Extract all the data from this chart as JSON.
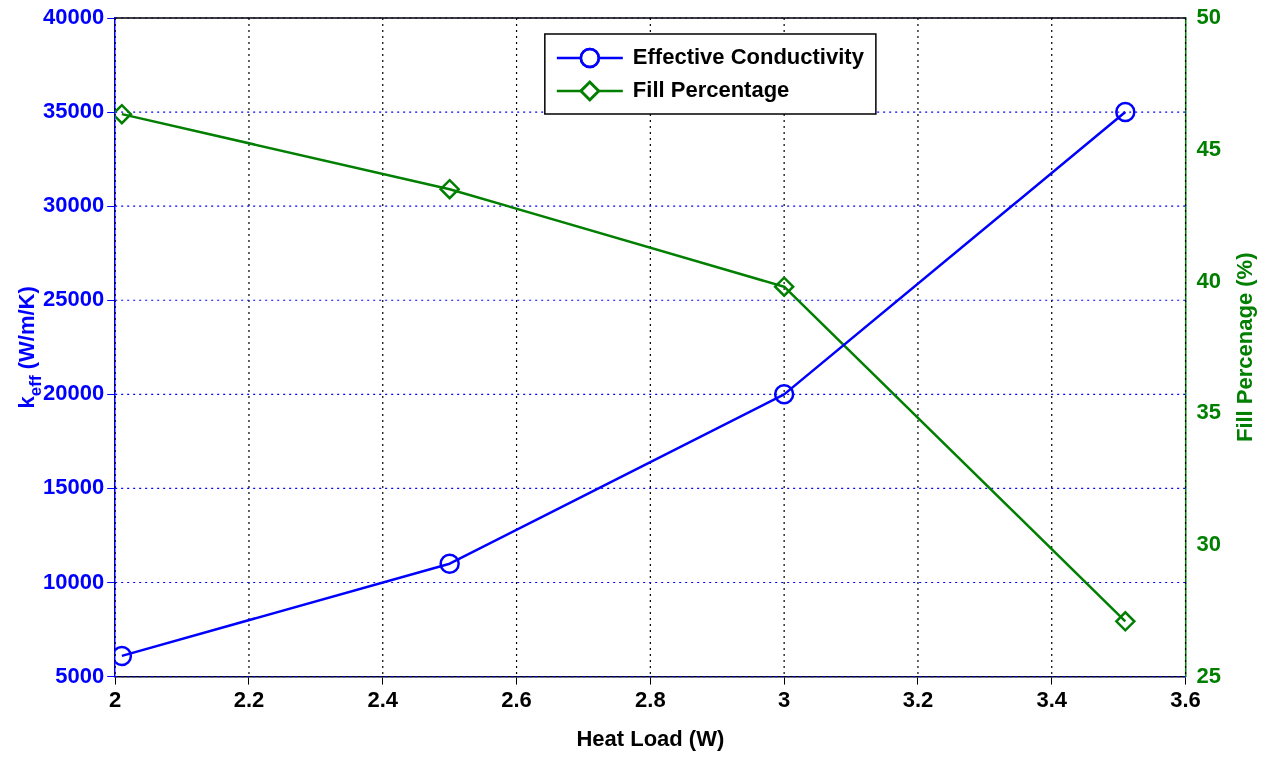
{
  "chart_data": {
    "type": "line",
    "xlabel": "Heat Load (W)",
    "ylabel": "k$_{eff}$ (W/m/K)",
    "y2label": "Fill Percenage (%)",
    "x": [
      2.01,
      2.5,
      3.0,
      3.51
    ],
    "series": [
      {
        "name": "Effective Conductivity",
        "color": "#0000ff",
        "values": [
          6100,
          11000,
          20000,
          35000
        ],
        "marker": "circle"
      },
      {
        "name": "Fill Percentage",
        "color": "#007f00",
        "values": [
          46.35,
          43.5,
          39.8,
          27.1
        ],
        "axis": "y2",
        "marker": "diamond"
      }
    ],
    "xlim": [
      2,
      3.6
    ],
    "xticks": [
      2,
      2.2,
      2.4,
      2.6,
      2.8,
      3,
      3.2,
      3.4,
      3.6
    ],
    "ylim": [
      5000,
      40000
    ],
    "yticks": [
      5000,
      10000,
      15000,
      20000,
      25000,
      30000,
      35000,
      40000
    ],
    "y2lim": [
      25,
      50
    ],
    "y2ticks": [
      25,
      30,
      35,
      40,
      45,
      50
    ],
    "grid": true,
    "legend": "top",
    "line_style": "solid"
  }
}
